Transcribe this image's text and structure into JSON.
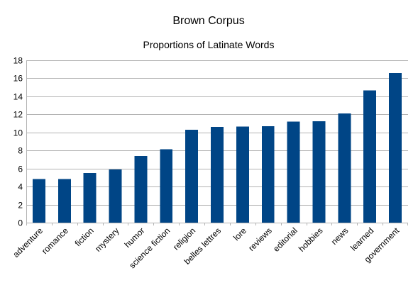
{
  "chart_data": {
    "type": "bar",
    "title": "Brown Corpus",
    "subtitle": "Proportions of Latinate Words",
    "xlabel": "",
    "ylabel": "",
    "categories": [
      "adventure",
      "romance",
      "fiction",
      "mystery",
      "humor",
      "science fiction",
      "religion",
      "belles lettres",
      "lore",
      "reviews",
      "editorial",
      "hobbies",
      "news",
      "learned",
      "government"
    ],
    "values": [
      4.85,
      4.85,
      5.5,
      5.9,
      7.4,
      8.15,
      10.3,
      10.6,
      10.65,
      10.7,
      11.2,
      11.25,
      12.1,
      14.65,
      16.6
    ],
    "ylim": [
      0,
      18
    ],
    "yticks": [
      0,
      2,
      4,
      6,
      8,
      10,
      12,
      14,
      16,
      18
    ],
    "grid": true,
    "legend": "none",
    "bar_color": "#004586"
  }
}
